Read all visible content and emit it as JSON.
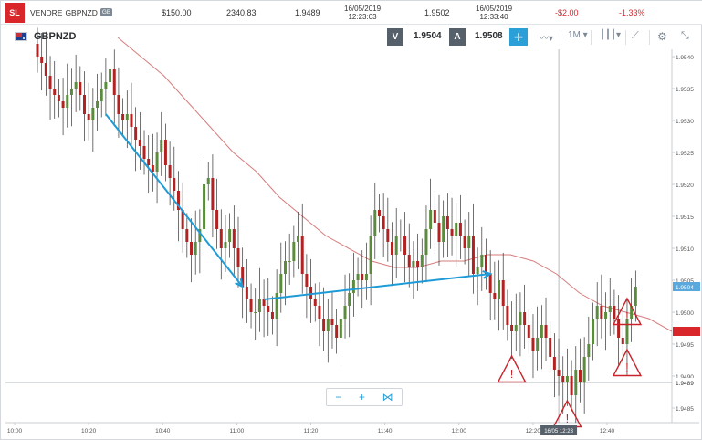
{
  "tradebar": {
    "sl_label": "SL",
    "side": "VENDRE",
    "instrument": "GBPNZD",
    "currency": "GB",
    "amount": "$150.00",
    "units": "2340.83",
    "open_price": "1.9489",
    "open_date": "16/05/2019",
    "open_time": "12:23:03",
    "close_price": "1.9502",
    "close_date": "16/05/2019",
    "close_time": "12:33:40",
    "pl": "-$2.00",
    "pl_pct": "-1.33%"
  },
  "header": {
    "symbol": "GBPNZD",
    "sell_label": "V",
    "sell_price": "1.9504",
    "buy_label": "A",
    "buy_price": "1.9508",
    "timeframe": "1M",
    "icons": [
      "flag-icon",
      "crosshair-icon",
      "line-chart-icon",
      "candlestick-icon",
      "draw-icon",
      "settings-icon",
      "fullscreen-icon"
    ]
  },
  "zoom": {
    "minus": "−",
    "plus": "+",
    "share_icon": "share-icon"
  },
  "colors": {
    "up": "#5b8c3e",
    "down": "#b22222",
    "ma": "#d77c7c",
    "arrow": "#1e9bd7",
    "warning": "#c9242b",
    "price_tag": "#5aa8dc",
    "sl_tag": "#d9262b"
  },
  "chart_data": {
    "type": "candlestick",
    "xlabels": [
      "10:00",
      "10:20",
      "10:40",
      "11:00",
      "11:20",
      "11:40",
      "12:00",
      "12:20",
      "12:40"
    ],
    "ylabels": [
      "1.9540",
      "1.9535",
      "1.9530",
      "1.9525",
      "1.9520",
      "1.9515",
      "1.9510",
      "1.9505",
      "1.9500",
      "1.9495",
      "1.9490",
      "1.9485"
    ],
    "ylim": [
      1.9484,
      1.9542
    ],
    "current_price_label": "1.9504",
    "current_price": 1.9504,
    "sl_price": 1.9497,
    "entry_price_label": "1.9489",
    "entry_price": 1.9489,
    "crosshair_label": "16/05 12:23",
    "crosshair_time_index": 122,
    "closes": [
      1.954,
      1.9539,
      1.9537,
      1.9535,
      1.9534,
      1.9533,
      1.9532,
      1.9534,
      1.9535,
      1.9536,
      1.9534,
      1.9531,
      1.953,
      1.9532,
      1.9533,
      1.9535,
      1.9536,
      1.9538,
      1.9534,
      1.9531,
      1.953,
      1.9531,
      1.9529,
      1.9527,
      1.9526,
      1.9524,
      1.9523,
      1.9522,
      1.9525,
      1.9527,
      1.9523,
      1.9521,
      1.9519,
      1.9516,
      1.9513,
      1.9511,
      1.9509,
      1.9511,
      1.9513,
      1.952,
      1.9521,
      1.9516,
      1.9513,
      1.951,
      1.9511,
      1.9513,
      1.951,
      1.9507,
      1.9504,
      1.9502,
      1.95,
      1.95,
      1.9502,
      1.9501,
      1.95,
      1.9499,
      1.9503,
      1.9506,
      1.9508,
      1.9508,
      1.9511,
      1.9512,
      1.9506,
      1.9504,
      1.9502,
      1.9501,
      1.9499,
      1.9497,
      1.9499,
      1.9498,
      1.9496,
      1.9499,
      1.9501,
      1.9503,
      1.9505,
      1.9506,
      1.9505,
      1.9506,
      1.9512,
      1.9516,
      1.9515,
      1.9513,
      1.9511,
      1.9509,
      1.9512,
      1.9512,
      1.9509,
      1.9507,
      1.9508,
      1.9507,
      1.9509,
      1.9513,
      1.9516,
      1.9514,
      1.9511,
      1.9515,
      1.9513,
      1.9512,
      1.9514,
      1.9512,
      1.951,
      1.9512,
      1.9506,
      1.9507,
      1.9509,
      1.9506,
      1.9503,
      1.9502,
      1.9505,
      1.9501,
      1.9498,
      1.9497,
      1.9498,
      1.95,
      1.9498,
      1.9496,
      1.9494,
      1.9496,
      1.9498,
      1.9496,
      1.9493,
      1.9491,
      1.949,
      1.9489,
      1.949,
      1.9487,
      1.9491,
      1.9489,
      1.9493,
      1.9495,
      1.9499,
      1.9501,
      1.9499,
      1.95,
      1.9501,
      1.9499,
      1.9496,
      1.9495,
      1.9499,
      1.9501,
      1.9504
    ],
    "moving_average": [
      1.9543,
      1.954,
      1.9537,
      1.9533,
      1.9529,
      1.9525,
      1.9522,
      1.9518,
      1.9515,
      1.9512,
      1.951,
      1.9508,
      1.9507,
      1.9507,
      1.9508,
      1.9508,
      1.9509,
      1.9509,
      1.9508,
      1.9506,
      1.9503,
      1.9501,
      1.95,
      1.9499,
      1.9497
    ],
    "annotations": [
      {
        "type": "arrow",
        "from": [
          16,
          1.9531
        ],
        "to": [
          48,
          1.9504
        ]
      },
      {
        "type": "arrow",
        "from": [
          53,
          1.9502
        ],
        "to": [
          106,
          1.9506
        ]
      },
      {
        "type": "warning",
        "at": [
          111,
          1.9491
        ]
      },
      {
        "type": "warning",
        "at": [
          124,
          1.9484
        ]
      },
      {
        "type": "warning",
        "at": [
          138,
          1.95
        ]
      },
      {
        "type": "warning",
        "at": [
          138,
          1.9492
        ]
      }
    ]
  }
}
